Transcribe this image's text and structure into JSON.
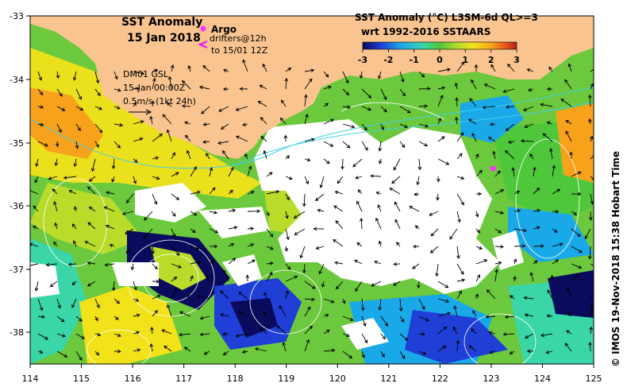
{
  "title": {
    "line1": "SST Anomaly",
    "line2": "15 Jan 2018"
  },
  "legend_symbols": {
    "argo_label": "Argo",
    "drifters_line1": "drifters@12h",
    "drifters_line2": "to 15/01 12Z",
    "argo_color": "#ff33ff",
    "drifter_color": "#ff00ff"
  },
  "current_info": {
    "line1": "DM01 GSL",
    "line2": "15-Jan 00:00Z",
    "line3": "0.5m/s (1kt 24h)"
  },
  "colorbar": {
    "title_line1": "SST Anomaly (°C) L3SM-6d QL>=3",
    "title_line2": "wrt 1992-2016 SSTAARS",
    "ticks": [
      "-3",
      "-2",
      "-1",
      "0",
      "1",
      "2",
      "3"
    ],
    "colors": [
      "#0b0b5e",
      "#1f3fd6",
      "#1aa9e8",
      "#3ad6a8",
      "#4ec83a",
      "#b9dc2a",
      "#f2e21a",
      "#f7a21a",
      "#e8521a",
      "#b3201a"
    ]
  },
  "axes": {
    "lon_ticks": [
      "114",
      "115",
      "116",
      "117",
      "118",
      "119",
      "120",
      "121",
      "122",
      "123",
      "124",
      "125"
    ],
    "lat_ticks": [
      "-33",
      "-34",
      "-35",
      "-36",
      "-37",
      "-38"
    ]
  },
  "credit": "© IMOS 19-Nov-2018 15:38 Hobart Time",
  "colors": {
    "land": "#f9c48f",
    "cloud_mask": "#ffffff",
    "frame": "#000000"
  }
}
